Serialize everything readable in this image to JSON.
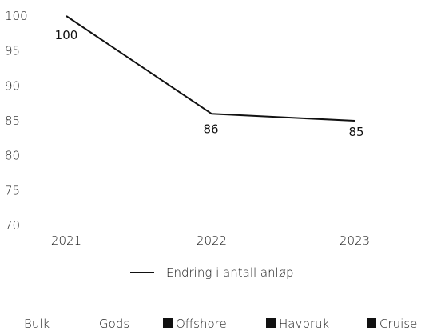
{
  "chart_data": {
    "type": "line",
    "categories": [
      "2021",
      "2022",
      "2023"
    ],
    "series": [
      {
        "name": "Endring i antall anløp",
        "values": [
          100,
          86,
          85
        ]
      }
    ],
    "data_labels": [
      "100",
      "86",
      "85"
    ],
    "ylim": [
      70,
      100
    ],
    "y_ticks": [
      "100",
      "95",
      "90",
      "85",
      "80",
      "75",
      "70"
    ],
    "grid": false,
    "legend_position": "bottom",
    "line_color": "#111111"
  },
  "bottom_legend": [
    {
      "label": "Bulk",
      "marker": false
    },
    {
      "label": "Gods",
      "marker": false
    },
    {
      "label": "Offshore",
      "marker": true
    },
    {
      "label": "Havbruk",
      "marker": true
    },
    {
      "label": "Cruise",
      "marker": true
    }
  ]
}
